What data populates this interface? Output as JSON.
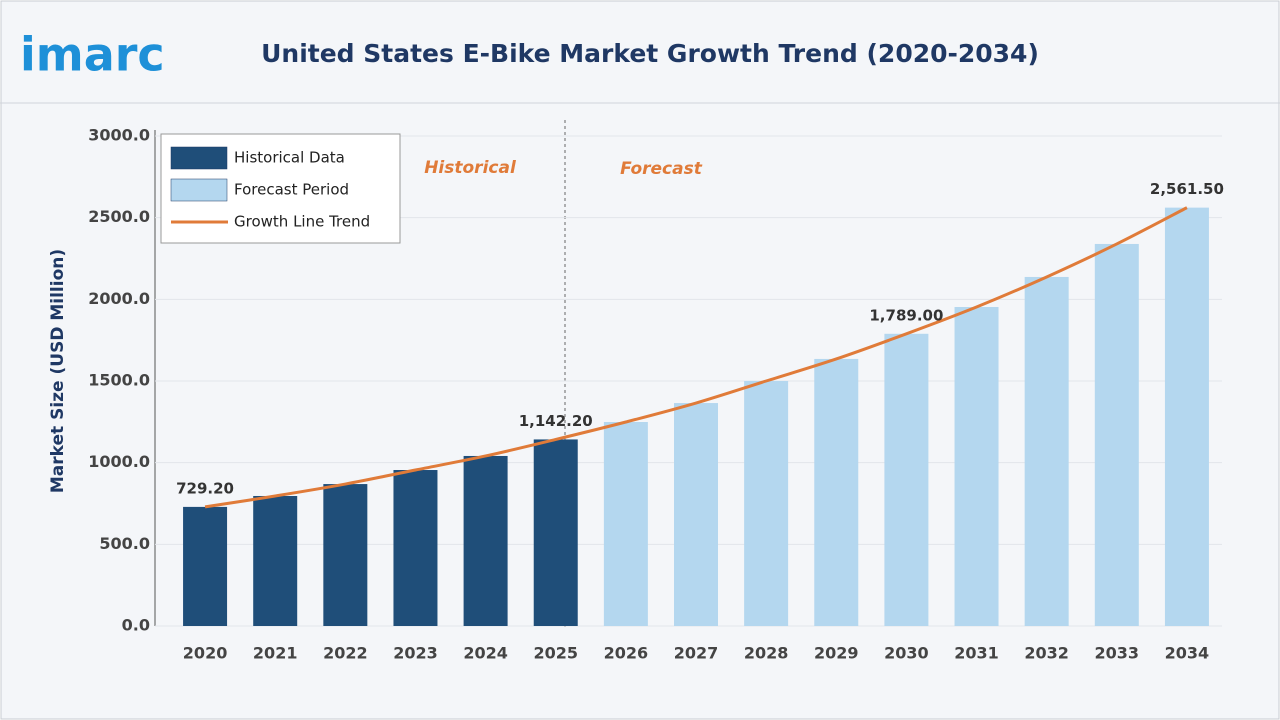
{
  "logo": "imarc",
  "chart_data": {
    "type": "bar",
    "title": "United States E-Bike Market Growth Trend (2020-2034)",
    "y_label": "Market Size (USD Million)",
    "annotations": [
      "Historical",
      "Forecast"
    ],
    "categories": [
      "2020",
      "2021",
      "2022",
      "2023",
      "2024",
      "2025",
      "2026",
      "2027",
      "2028",
      "2029",
      "2030",
      "2031",
      "2032",
      "2033",
      "2034"
    ],
    "series": [
      {
        "name": "Historical Data",
        "color": "#1f4e79",
        "values": [
          729.2,
          796,
          869,
          955,
          1041,
          1142.2,
          null,
          null,
          null,
          null,
          null,
          null,
          null,
          null,
          null
        ],
        "value_labels": [
          "729.20",
          null,
          null,
          null,
          null,
          "1,142.20",
          null,
          null,
          null,
          null,
          null,
          null,
          null,
          null,
          null
        ]
      },
      {
        "name": "Forecast Period",
        "color": "#b4d7ef",
        "values": [
          null,
          null,
          null,
          null,
          null,
          null,
          1249,
          1365,
          1500,
          1635,
          1789,
          1953,
          2137,
          2339,
          2561.5
        ],
        "value_labels": [
          null,
          null,
          null,
          null,
          null,
          null,
          null,
          null,
          null,
          null,
          "1,789.00",
          null,
          null,
          null,
          "2,561.50"
        ]
      },
      {
        "name": "Growth Line Trend",
        "color": "#e07b39",
        "type": "line",
        "values": [
          729.2,
          796,
          869,
          955,
          1041,
          1142.2,
          1249,
          1365,
          1500,
          1635,
          1789,
          1953,
          2137,
          2339,
          2561.5
        ]
      }
    ],
    "ylim": [
      0,
      3000
    ],
    "yticks": [
      {
        "value": 0,
        "label": "0.0"
      },
      {
        "value": 500,
        "label": "500.0"
      },
      {
        "value": 1000,
        "label": "1000.0"
      },
      {
        "value": 1500,
        "label": "1500.0"
      },
      {
        "value": 2000,
        "label": "2000.0"
      },
      {
        "value": 2500,
        "label": "2500.0"
      },
      {
        "value": 3000,
        "label": "3000.0"
      }
    ],
    "grid": true
  }
}
